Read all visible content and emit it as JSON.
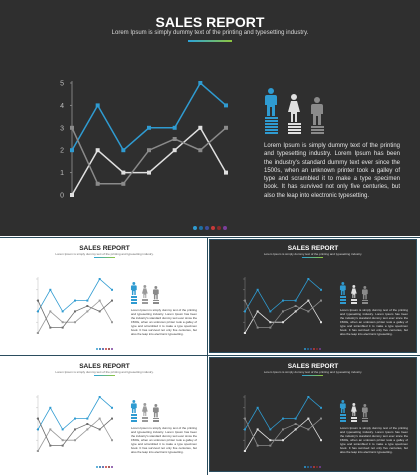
{
  "slide": {
    "title": "SALES REPORT",
    "subtitle": "Lorem Ipsum is simply dummy text of the printing and typesetting industry.",
    "body": "Lorem Ipsum is simply dummy text of the printing and typesetting industry. Lorem Ipsum has been the industry's standard dummy text ever since the 1500s, when an unknown printer took a galley of type and scrambled it to make a type specimen book. It has survived not only five centuries, but also the leap into electronic typesetting."
  },
  "colors": {
    "dark_bg": "#2f2f2f",
    "light_bg": "#ffffff",
    "blue": "#2f9bd1",
    "white_series": "#e0e0e0",
    "grey_series": "#8a8a8a",
    "slot_border": "#2b4d5e"
  },
  "gradient_bar_colors": [
    "#2ba3d9",
    "#8fc63f"
  ],
  "icons": [
    "male-figure-icon",
    "female-figure-icon",
    "male-figure-icon"
  ],
  "nav_dot_colors": [
    "#2f9bd1",
    "#1e6fa3",
    "#3d4f9c",
    "#c73a3a",
    "#8a2a2a",
    "#7a3f9b"
  ],
  "chart_data": {
    "type": "line",
    "x": [
      1,
      2,
      3,
      4,
      5,
      6,
      7
    ],
    "y_tick_labels": [
      "0",
      "1",
      "2",
      "3",
      "4",
      "5"
    ],
    "ylim": [
      0,
      5
    ],
    "grid": false,
    "series": [
      {
        "color": "#2f9bd1",
        "values": [
          2,
          4,
          2,
          3,
          3,
          5,
          4
        ]
      },
      {
        "color": "#e0e0e0",
        "values": [
          0,
          2,
          1,
          1,
          2,
          3,
          1
        ]
      },
      {
        "color": "#8a8a8a",
        "values": [
          3,
          0.5,
          0.5,
          2,
          2.5,
          2,
          3
        ]
      }
    ]
  }
}
